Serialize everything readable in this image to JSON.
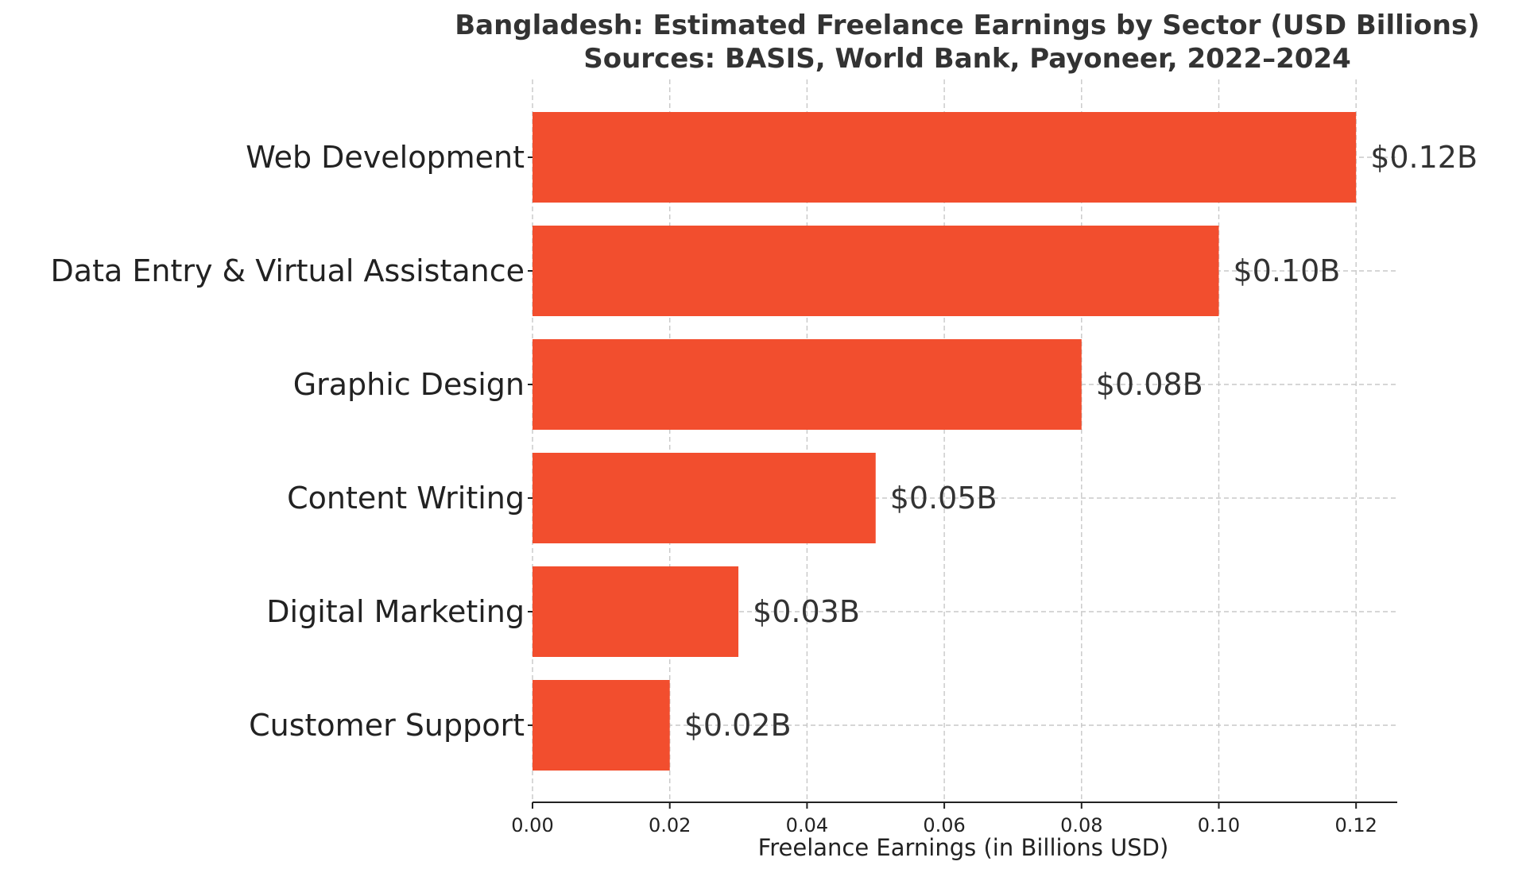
{
  "chart_data": {
    "type": "bar",
    "orientation": "horizontal",
    "title": "Bangladesh: Estimated Freelance Earnings by Sector (USD Billions)",
    "subtitle": "Sources: BASIS, World Bank, Payoneer, 2022–2024",
    "xlabel": "Freelance Earnings (in Billions USD)",
    "ylabel": "",
    "xlim": [
      0,
      0.126
    ],
    "xticks": [
      0.0,
      0.02,
      0.04,
      0.06,
      0.08,
      0.1,
      0.12
    ],
    "xtick_labels": [
      "0.00",
      "0.02",
      "0.04",
      "0.06",
      "0.08",
      "0.10",
      "0.12"
    ],
    "grid": true,
    "bar_color": "#f24e2e",
    "categories": [
      "Web Development",
      "Data Entry & Virtual Assistance",
      "Graphic Design",
      "Content Writing",
      "Digital Marketing",
      "Customer Support"
    ],
    "values": [
      0.12,
      0.1,
      0.08,
      0.05,
      0.03,
      0.02
    ],
    "data_labels": [
      "$0.12B",
      "$0.10B",
      "$0.08B",
      "$0.05B",
      "$0.03B",
      "$0.02B"
    ]
  }
}
